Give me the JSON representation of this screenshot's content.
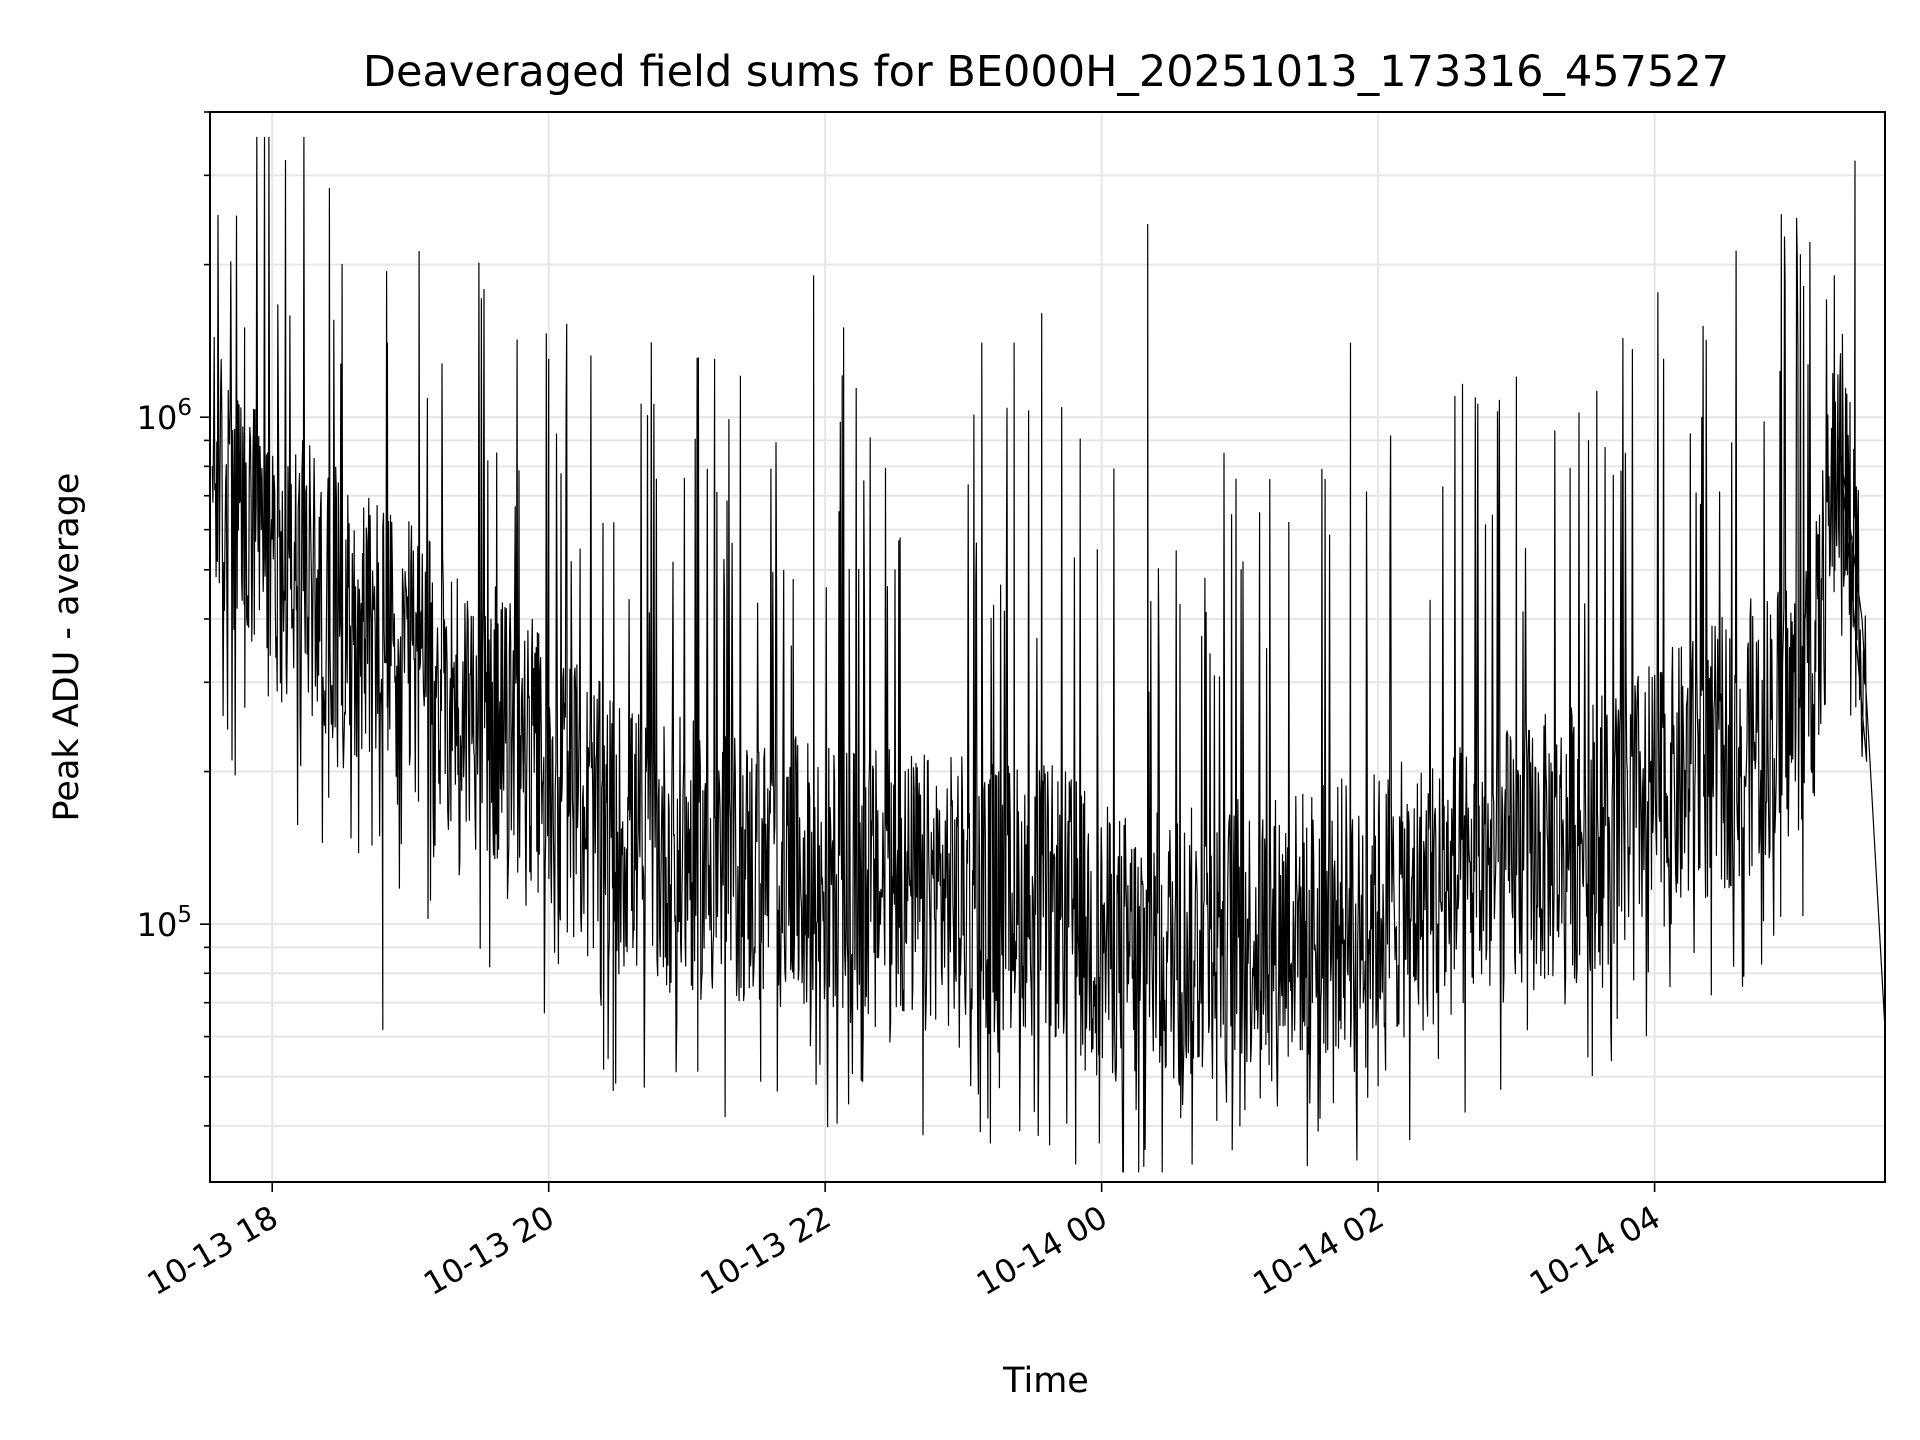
{
  "chart_data": {
    "type": "line",
    "title": "Deaveraged field sums for BE000H_20251013_173316_457527",
    "xlabel": "Time",
    "ylabel": "Peak ADU - average",
    "x_axis": {
      "kind": "date",
      "range": [
        "2025-10-13 17:33",
        "2025-10-14 05:40"
      ],
      "ticks": [
        {
          "value": "2025-10-13 18:00",
          "label": "10-13 18"
        },
        {
          "value": "2025-10-13 20:00",
          "label": "10-13 20"
        },
        {
          "value": "2025-10-13 22:00",
          "label": "10-13 22"
        },
        {
          "value": "2025-10-14 00:00",
          "label": "10-14 00"
        },
        {
          "value": "2025-10-14 02:00",
          "label": "10-14 02"
        },
        {
          "value": "2025-10-14 04:00",
          "label": "10-14 04"
        }
      ]
    },
    "y_axis": {
      "scale": "log",
      "range": [
        31000,
        4000000
      ],
      "ticks": [
        {
          "value": 100000,
          "base": "10",
          "exp": "5"
        },
        {
          "value": 1000000,
          "base": "10",
          "exp": "6"
        }
      ]
    },
    "grid": true,
    "legend": "none",
    "line_color": "#000000",
    "series": [
      {
        "x": [
          "2025-10-13 17:34",
          "2025-10-13 17:45",
          "2025-10-13 18:00",
          "2025-10-13 18:15",
          "2025-10-13 18:30",
          "2025-10-13 18:45",
          "2025-10-13 19:00",
          "2025-10-13 19:15",
          "2025-10-13 19:30",
          "2025-10-13 19:45",
          "2025-10-13 20:00",
          "2025-10-13 20:15",
          "2025-10-13 20:30",
          "2025-10-13 20:45",
          "2025-10-13 21:00",
          "2025-10-13 21:15",
          "2025-10-13 21:30",
          "2025-10-13 21:45",
          "2025-10-13 22:00",
          "2025-10-13 22:15",
          "2025-10-13 22:30",
          "2025-10-13 22:45",
          "2025-10-13 23:00",
          "2025-10-13 23:15",
          "2025-10-13 23:30",
          "2025-10-13 23:45",
          "2025-10-14 00:00",
          "2025-10-14 00:15",
          "2025-10-14 00:30",
          "2025-10-14 00:45",
          "2025-10-14 01:00",
          "2025-10-14 01:15",
          "2025-10-14 01:30",
          "2025-10-14 01:45",
          "2025-10-14 02:00",
          "2025-10-14 02:15",
          "2025-10-14 02:30",
          "2025-10-14 02:45",
          "2025-10-14 03:00",
          "2025-10-14 03:15",
          "2025-10-14 03:30",
          "2025-10-14 03:45",
          "2025-10-14 04:00",
          "2025-10-14 04:15",
          "2025-10-14 04:30",
          "2025-10-14 04:45",
          "2025-10-14 05:00",
          "2025-10-14 05:10",
          "2025-10-14 05:20",
          "2025-10-14 05:30",
          "2025-10-14 05:40"
        ],
        "y": [
          800000,
          600000,
          520000,
          480000,
          420000,
          380000,
          330000,
          290000,
          260000,
          230000,
          200000,
          170000,
          150000,
          140000,
          135000,
          130000,
          128000,
          125000,
          122000,
          120000,
          118000,
          116000,
          115000,
          113000,
          112000,
          108000,
          92000,
          88000,
          90000,
          92000,
          95000,
          98000,
          100000,
          104000,
          108000,
          112000,
          118000,
          125000,
          132000,
          140000,
          150000,
          162000,
          178000,
          196000,
          215000,
          240000,
          270000,
          330000,
          900000,
          400000,
          62000
        ],
        "spikes": [
          {
            "x": "2025-10-13 17:48",
            "y": 1500000
          },
          {
            "x": "2025-10-13 18:50",
            "y": 1400000
          },
          {
            "x": "2025-10-13 20:00",
            "y": 1300000
          },
          {
            "x": "2025-10-13 21:12",
            "y": 1300000
          },
          {
            "x": "2025-10-13 21:55",
            "y": 1900000
          },
          {
            "x": "2025-10-13 22:08",
            "y": 1500000
          },
          {
            "x": "2025-10-13 23:08",
            "y": 1400000
          },
          {
            "x": "2025-10-13 23:22",
            "y": 1400000
          },
          {
            "x": "2025-10-13 23:34",
            "y": 1600000
          },
          {
            "x": "2025-10-14 00:20",
            "y": 2400000
          },
          {
            "x": "2025-10-14 01:48",
            "y": 1400000
          },
          {
            "x": "2025-10-14 03:00",
            "y": 1200000
          },
          {
            "x": "2025-10-14 05:18",
            "y": 1900000
          },
          {
            "x": "2025-10-14 05:27",
            "y": 3200000
          }
        ],
        "dips": [
          {
            "x": "2025-10-13 18:48",
            "y": 62000
          },
          {
            "x": "2025-10-13 20:28",
            "y": 47000
          },
          {
            "x": "2025-10-13 21:32",
            "y": 49000
          },
          {
            "x": "2025-10-13 23:59",
            "y": 37000
          },
          {
            "x": "2025-10-14 00:50",
            "y": 41000
          },
          {
            "x": "2025-10-14 01:00",
            "y": 40000
          },
          {
            "x": "2025-10-14 02:00",
            "y": 48000
          }
        ]
      }
    ]
  }
}
